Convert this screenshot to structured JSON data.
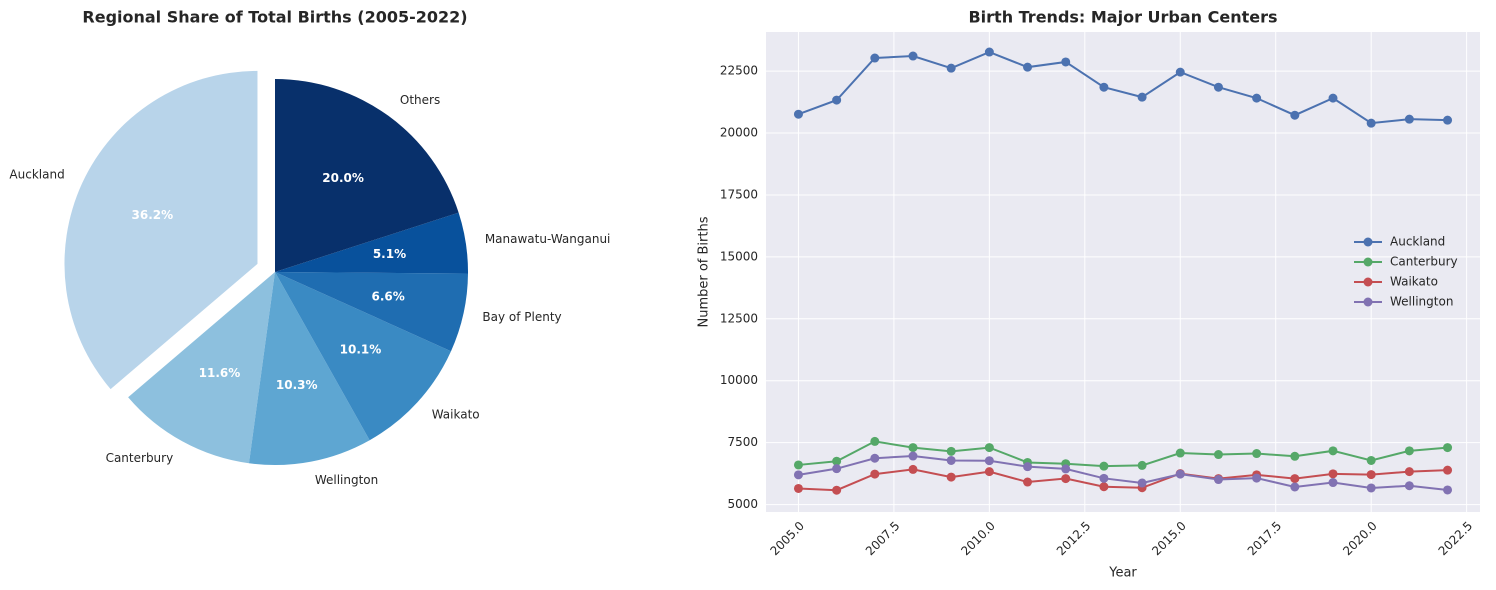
{
  "chart_data": [
    {
      "type": "pie",
      "title": "Regional Share of Total Births (2005-2022)",
      "categories": [
        "Auckland",
        "Canterbury",
        "Wellington",
        "Waikato",
        "Bay of Plenty",
        "Manawatu-Wanganui",
        "Others"
      ],
      "values": [
        36.2,
        11.6,
        10.3,
        10.1,
        6.6,
        5.1,
        20.0
      ],
      "value_labels": [
        "36.2%",
        "11.6%",
        "10.3%",
        "10.1%",
        "6.6%",
        "5.1%",
        "20.0%"
      ],
      "colors": [
        "#b8d4ea",
        "#8dc0de",
        "#5ea6d2",
        "#3a8ac3",
        "#1f6db1",
        "#08519c",
        "#08306b"
      ],
      "exploded": "Auckland"
    },
    {
      "type": "line",
      "title": "Birth Trends: Major Urban Centers",
      "xlabel": "Year",
      "ylabel": "Number of Births",
      "x": [
        2005,
        2006,
        2007,
        2008,
        2009,
        2010,
        2011,
        2012,
        2013,
        2014,
        2015,
        2016,
        2017,
        2018,
        2019,
        2020,
        2021,
        2022
      ],
      "series": [
        {
          "name": "Auckland",
          "color": "#4c72b0",
          "values": [
            20760,
            21330,
            23030,
            23110,
            22620,
            23270,
            22660,
            22870,
            21850,
            21450,
            22460,
            21850,
            21410,
            20720,
            21410,
            20400,
            20560,
            20520
          ]
        },
        {
          "name": "Canterbury",
          "color": "#55a868",
          "values": [
            6600,
            6750,
            7550,
            7300,
            7150,
            7300,
            6700,
            6650,
            6550,
            6580,
            7080,
            7020,
            7060,
            6950,
            7170,
            6780,
            7170,
            7300
          ]
        },
        {
          "name": "Waikato",
          "color": "#c44e52",
          "values": [
            5650,
            5580,
            6230,
            6420,
            6110,
            6330,
            5910,
            6050,
            5720,
            5680,
            6250,
            6050,
            6200,
            6050,
            6240,
            6210,
            6330,
            6390
          ]
        },
        {
          "name": "Wellington",
          "color": "#8172b2",
          "values": [
            6200,
            6450,
            6870,
            6960,
            6780,
            6770,
            6530,
            6440,
            6060,
            5870,
            6230,
            6010,
            6070,
            5710,
            5890,
            5670,
            5760,
            5590
          ]
        }
      ],
      "xlim": [
        2004.15,
        2022.85
      ],
      "xticks": [
        {
          "value": 2005,
          "label": "2005.0"
        },
        2007.5,
        {
          "value": 2010,
          "label": "2010.0"
        },
        2012.5,
        {
          "value": 2015,
          "label": "2015.0"
        },
        2017.5,
        {
          "value": 2020,
          "label": "2020.0"
        },
        2022.5
      ],
      "ylim": [
        4700,
        24080
      ],
      "yticks": [
        5000,
        7500,
        10000,
        12500,
        15000,
        17500,
        20000,
        22500
      ],
      "grid": true,
      "legend": "center right"
    }
  ]
}
